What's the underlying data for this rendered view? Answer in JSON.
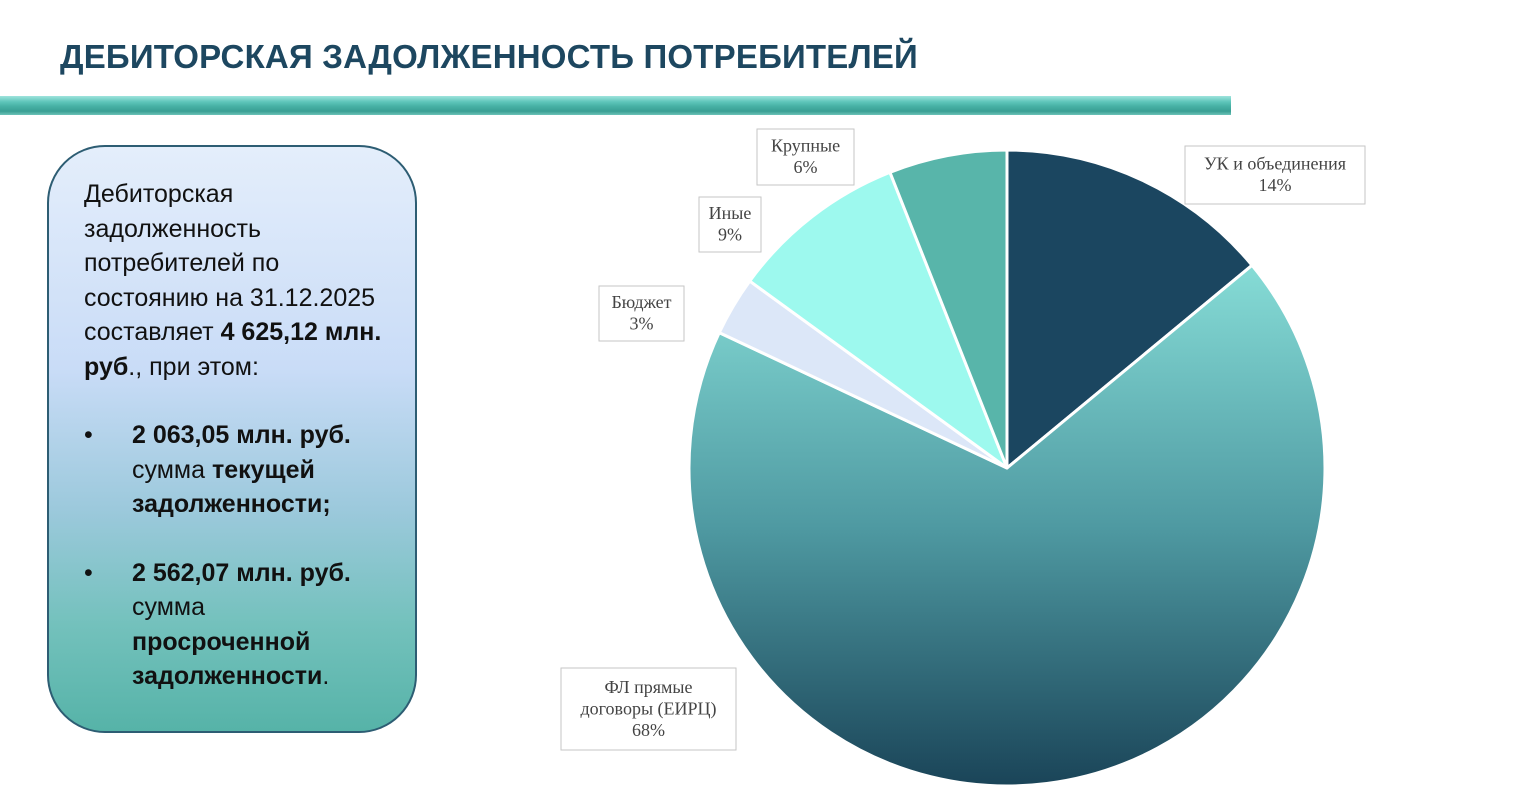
{
  "page": {
    "title": "ДЕБИТОРСКАЯ ЗАДОЛЖЕННОСТЬ ПОТРЕБИТЕЛЕЙ"
  },
  "info": {
    "intro": "Дебиторская задолженность потребителей по состоянию на 31.12.2025 составляет",
    "total_amount": "4 625,12 млн. руб",
    "total_suffix": "., при этом:",
    "bullet_char": "•",
    "items": [
      {
        "amount": "2 063,05 млн. руб.",
        "prefix": "сумма ",
        "emphasis": "текущей задолженности;",
        "suffix": ""
      },
      {
        "amount": "2 562,07 млн. руб.",
        "prefix": "сумма ",
        "emphasis": "просроченной задолженности",
        "suffix": "."
      }
    ]
  },
  "chart_data": {
    "type": "pie",
    "title": "",
    "start_angle_deg": 0,
    "direction": "clockwise",
    "slices": [
      {
        "label": "УК и объединения",
        "value": 14,
        "display": "14%",
        "color": "#1b4660"
      },
      {
        "label": "ФЛ прямые договоры (ЕИРЦ)",
        "value": 68,
        "display": "68%",
        "color": "gradient:#86dcd6-#1a4458"
      },
      {
        "label": "Бюджет",
        "value": 3,
        "display": "3%",
        "color": "#dce7f8"
      },
      {
        "label": "Иные",
        "value": 9,
        "display": "9%",
        "color": "#9df9ee"
      },
      {
        "label": "Крупные",
        "value": 6,
        "display": "6%",
        "color": "#58b5aa"
      }
    ]
  }
}
